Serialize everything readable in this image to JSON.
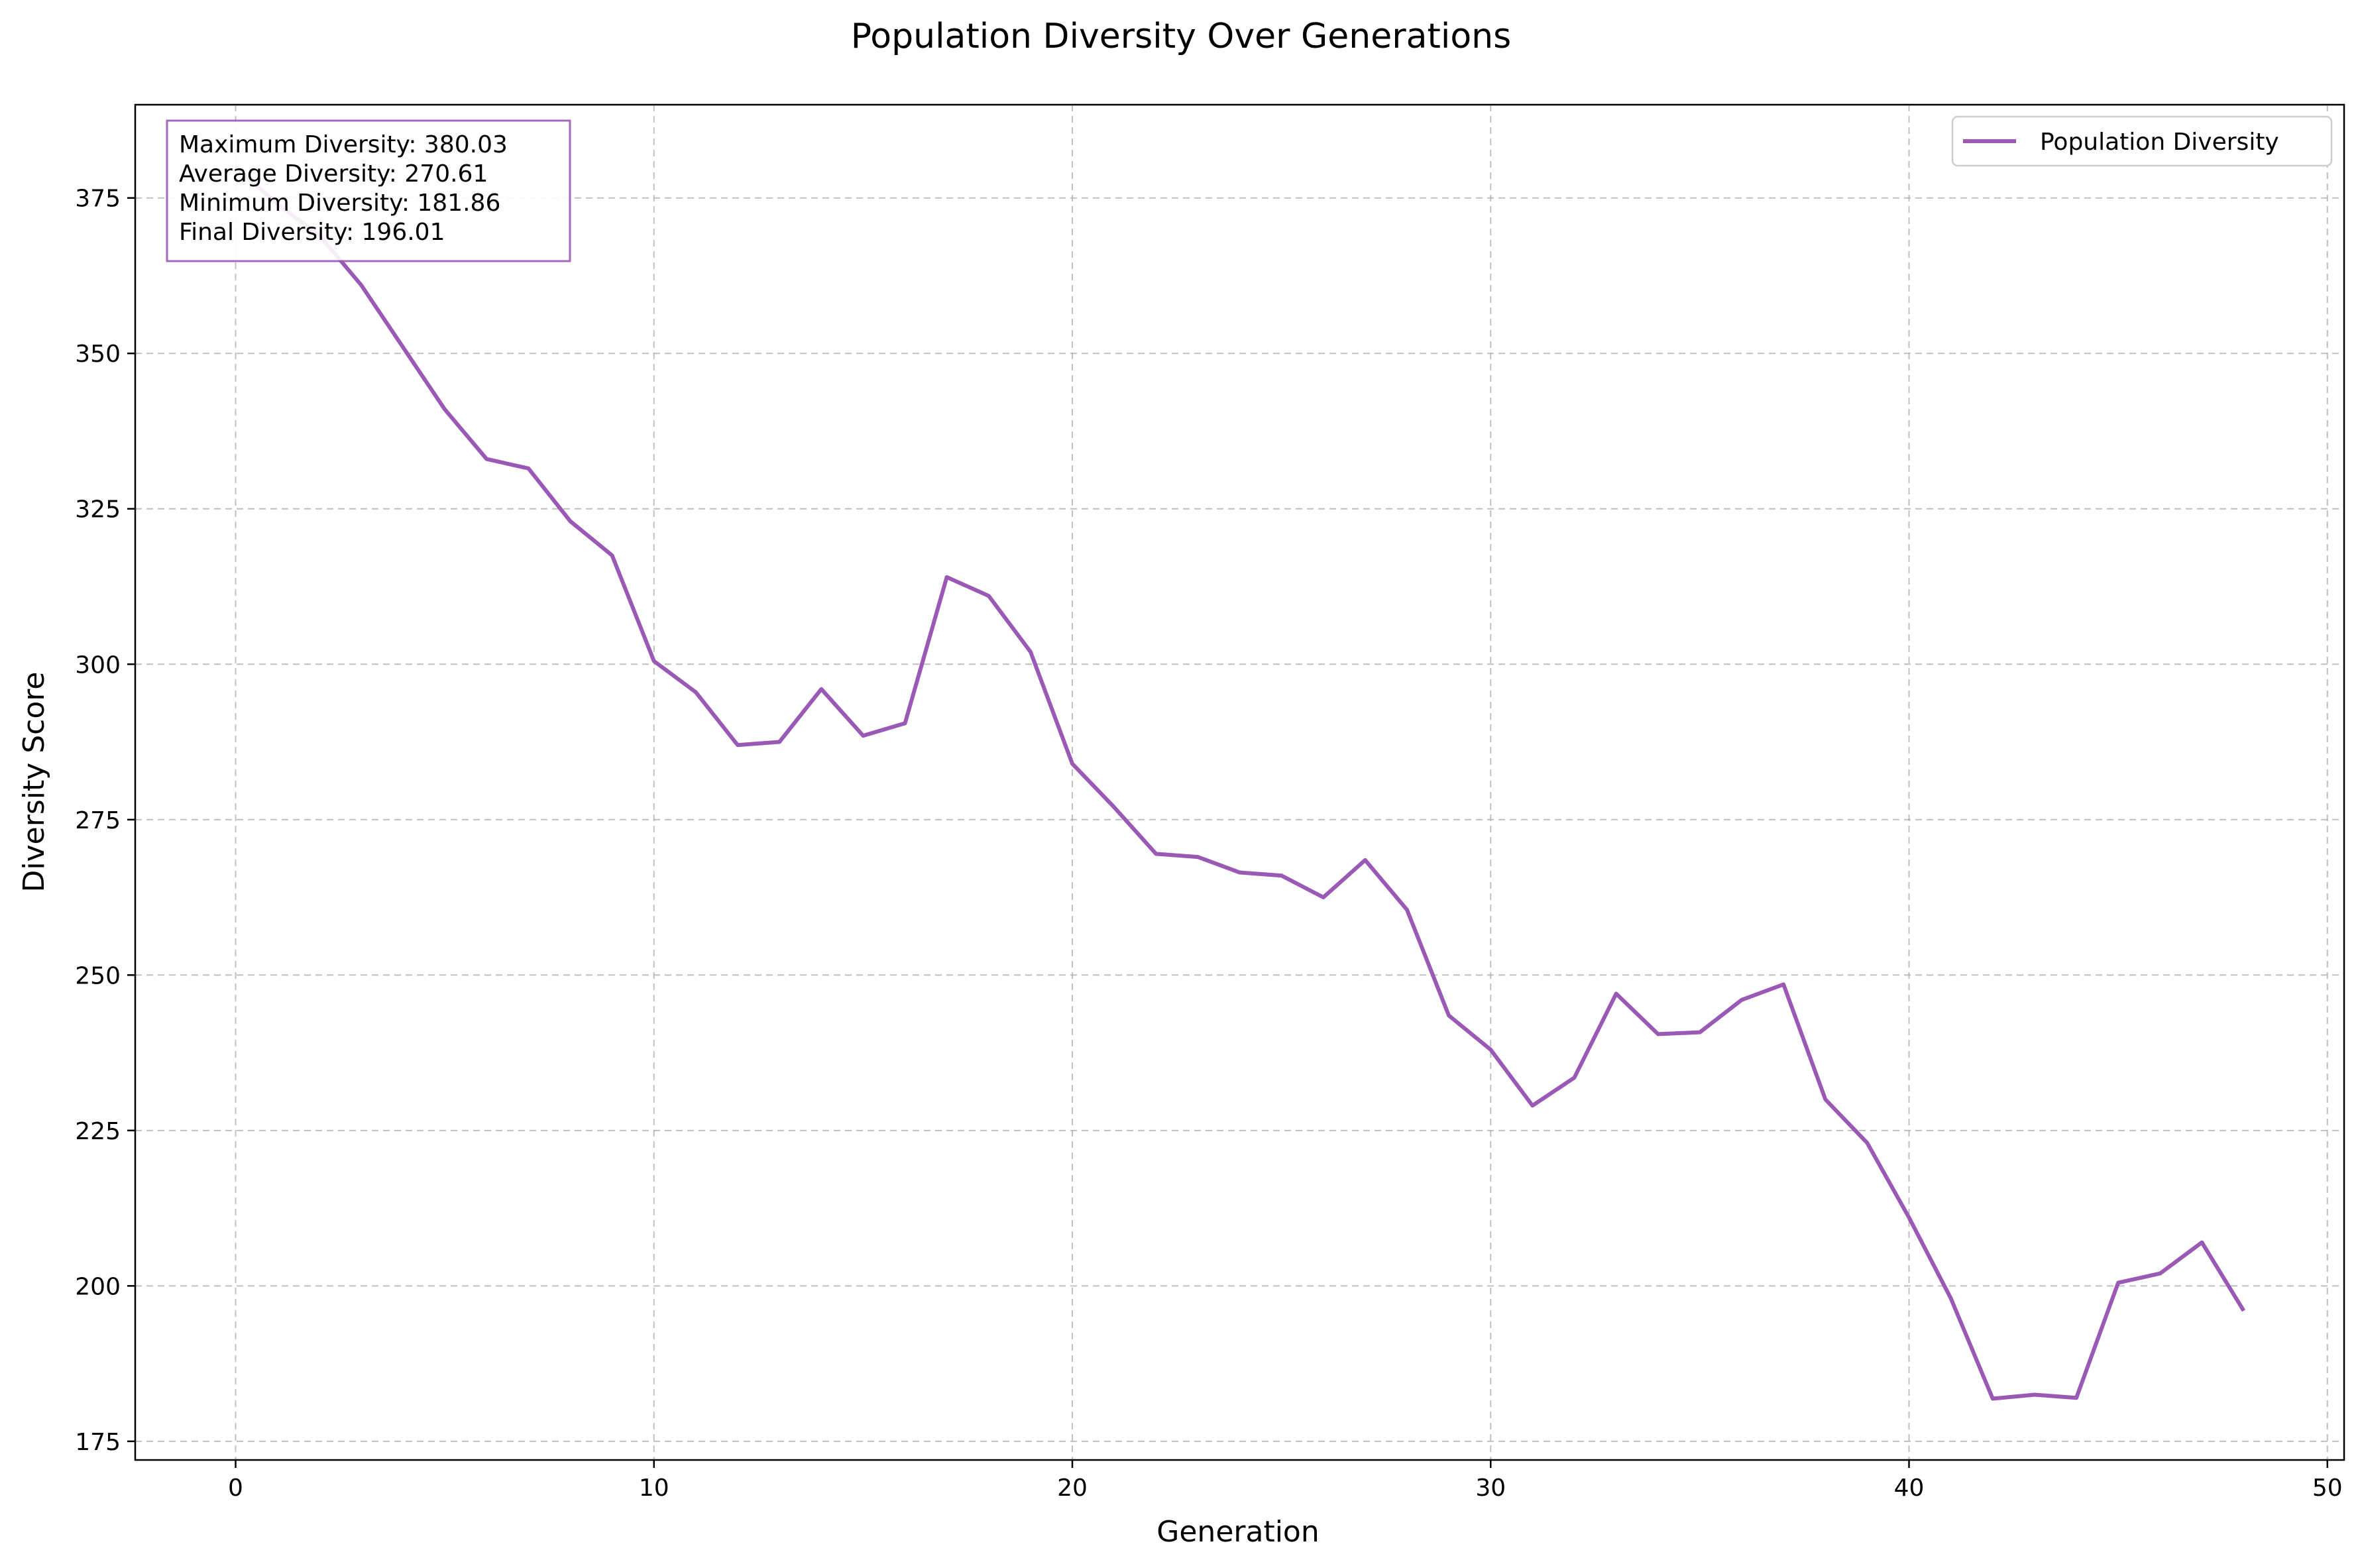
{
  "colors": {
    "line": "#9b59b6"
  },
  "stats_box": {
    "lines": [
      "Maximum Diversity: 380.03",
      "Average Diversity: 270.61",
      "Minimum Diversity: 181.86",
      "Final Diversity: 196.01"
    ]
  },
  "chart_data": {
    "type": "line",
    "title": "Population Diversity Over Generations",
    "xlabel": "Generation",
    "ylabel": "Diversity Score",
    "xlim": [
      -2.4,
      50.4
    ],
    "ylim": [
      172,
      390
    ],
    "xticks": [
      0,
      10,
      20,
      30,
      40,
      50
    ],
    "yticks": [
      175,
      200,
      225,
      250,
      275,
      300,
      325,
      350,
      375
    ],
    "grid": true,
    "legend_position": "top-right",
    "series": [
      {
        "name": "Population Diversity",
        "x": [
          0,
          1,
          2,
          3,
          4,
          5,
          6,
          7,
          8,
          9,
          10,
          11,
          12,
          13,
          14,
          15,
          16,
          17,
          18,
          19,
          20,
          21,
          22,
          23,
          24,
          25,
          26,
          27,
          28,
          29,
          30,
          31,
          32,
          33,
          34,
          35,
          36,
          37,
          38,
          39,
          40,
          41,
          42,
          43,
          44,
          45,
          46,
          47,
          48
        ],
        "y": [
          380.03,
          374,
          369,
          361,
          351,
          341,
          333,
          331.5,
          323,
          317.5,
          300.5,
          295.5,
          287,
          287.5,
          296,
          288.5,
          290.5,
          314,
          311,
          302,
          284,
          277,
          269.5,
          269,
          266.5,
          266,
          262.5,
          268.5,
          260.5,
          243.5,
          238,
          229,
          233.5,
          247,
          240.5,
          240.8,
          246,
          248.5,
          230,
          223,
          211,
          198,
          181.86,
          182.5,
          182,
          200.5,
          202,
          207,
          196.01
        ]
      }
    ]
  }
}
